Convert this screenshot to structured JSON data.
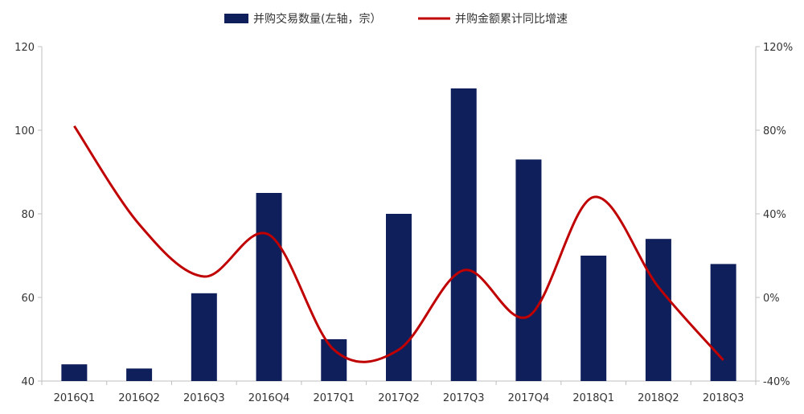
{
  "chart_data": {
    "type": "bar",
    "categories": [
      "2016Q1",
      "2016Q2",
      "2016Q3",
      "2016Q4",
      "2017Q1",
      "2017Q2",
      "2017Q3",
      "2017Q4",
      "2018Q1",
      "2018Q2",
      "2018Q3"
    ],
    "series": [
      {
        "name": "并购交易数量(左轴，宗）",
        "type": "bar",
        "axis": "left",
        "color": "#0f1f5c",
        "values": [
          44,
          43,
          61,
          85,
          50,
          80,
          110,
          93,
          70,
          74,
          68
        ]
      },
      {
        "name": "并购金额累计同比增速",
        "type": "line",
        "axis": "right",
        "color": "#c00000",
        "smooth": true,
        "values": [
          0.82,
          0.35,
          0.1,
          0.3,
          -0.25,
          -0.25,
          0.13,
          -0.09,
          0.48,
          0.05,
          -0.3
        ]
      }
    ],
    "y_left": {
      "min": 40,
      "max": 120,
      "ticks": [
        "40",
        "60",
        "80",
        "100",
        "120"
      ]
    },
    "y_right": {
      "min": -0.4,
      "max": 1.2,
      "ticks": [
        "-40%",
        "0%",
        "40%",
        "80%",
        "120%"
      ]
    },
    "grid": false,
    "legend_position": "top-center"
  }
}
